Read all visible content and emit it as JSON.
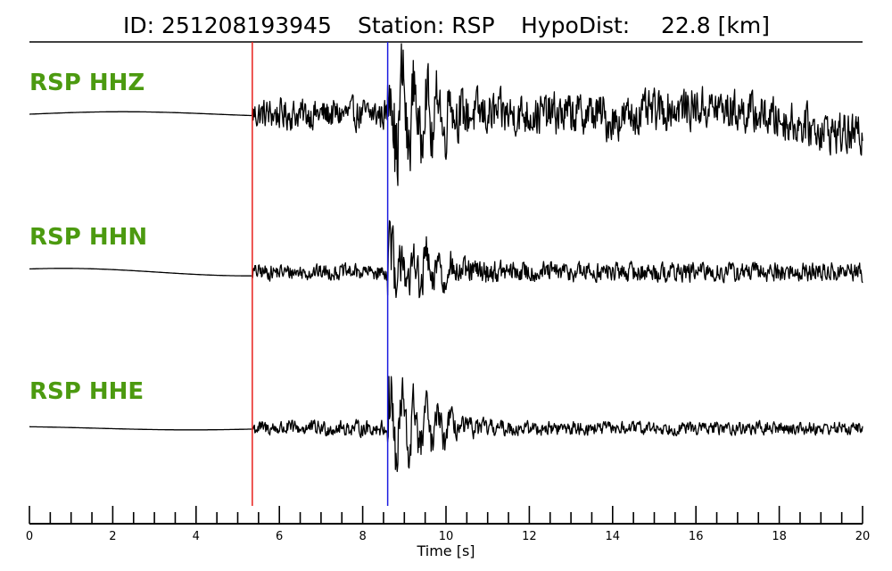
{
  "header": {
    "id_label": "ID: 251208193945",
    "station_label": "Station: RSP",
    "hypodist_label": "HypoDist:",
    "hypodist_value": "22.8 [km]"
  },
  "colors": {
    "label": "#4c9a10",
    "p_pick": "#e8201c",
    "s_pick": "#1c1ce0",
    "trace": "#000000"
  },
  "chart_data": {
    "type": "line",
    "xlabel": "Time [s]",
    "xlim": [
      0,
      20
    ],
    "major_ticks": [
      0,
      2,
      4,
      6,
      8,
      10,
      12,
      14,
      16,
      18,
      20
    ],
    "minor_tick_step": 0.5,
    "picks": [
      {
        "phase": "P",
        "time": 5.35,
        "color": "#e8201c"
      },
      {
        "phase": "S",
        "time": 8.6,
        "color": "#1c1ce0"
      }
    ],
    "series": [
      {
        "name": "RSP HHZ",
        "pre_event_amplitude": 0.05,
        "p_coda_amplitude": 0.3,
        "s_peak_amplitude": 1.0,
        "late_amplitude": 0.4
      },
      {
        "name": "RSP HHN",
        "pre_event_amplitude": 0.1,
        "p_coda_amplitude": 0.2,
        "s_peak_amplitude": 1.0,
        "late_amplitude": 0.25
      },
      {
        "name": "RSP HHE",
        "pre_event_amplitude": 0.04,
        "p_coda_amplitude": 0.18,
        "s_peak_amplitude": 1.0,
        "late_amplitude": 0.15
      }
    ]
  }
}
